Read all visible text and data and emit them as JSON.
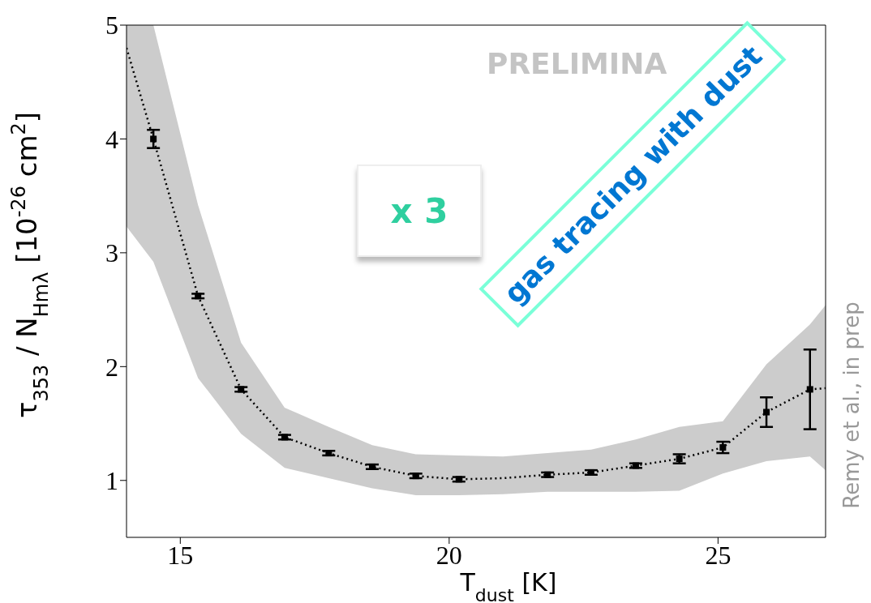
{
  "chart_data": {
    "type": "line",
    "xlabel": "T$_{dust}$ [K]",
    "ylabel": "τ$_{353}$ / N$_{Hmλ}$  [10$^{-26}$ cm$^{2}$]",
    "xlim": [
      14,
      27
    ],
    "xticks": [
      15,
      20,
      25
    ],
    "ylim": [
      0.5,
      5
    ],
    "yticks": [
      1,
      2,
      3,
      4,
      5
    ],
    "grid": false,
    "legend": false,
    "annotations": [
      "PRELIMINA",
      "x 3",
      "gas tracing with dust",
      "Remy et al., in prep"
    ],
    "series": [
      {
        "type": "line",
        "color": "#000000",
        "marker": "none",
        "line_style": "dotted",
        "x": [
          14,
          14.5,
          15.33,
          16.13,
          16.94,
          17.76,
          18.57,
          19.38,
          20.18,
          21.0,
          21.83,
          22.64,
          23.47,
          24.28,
          25.09,
          25.9,
          26.71,
          27
        ],
        "values": [
          4.8,
          4.0,
          2.62,
          1.8,
          1.38,
          1.24,
          1.12,
          1.04,
          1.01,
          1.02,
          1.05,
          1.07,
          1.13,
          1.19,
          1.29,
          1.6,
          1.8,
          1.81
        ],
        "lower": [
          3.23,
          2.92,
          1.9,
          1.41,
          1.11,
          1.02,
          0.93,
          0.87,
          0.87,
          0.88,
          0.9,
          0.9,
          0.9,
          0.91,
          1.06,
          1.17,
          1.21,
          1.09
        ],
        "upper": [
          5,
          5,
          3.42,
          2.21,
          1.64,
          1.47,
          1.31,
          1.23,
          1.22,
          1.21,
          1.24,
          1.27,
          1.36,
          1.47,
          1.52,
          2.02,
          2.37,
          2.54
        ]
      },
      {
        "type": "scatter",
        "color": "#000000",
        "marker": "square",
        "x": [
          14.5,
          15.33,
          16.13,
          16.94,
          17.76,
          18.57,
          19.38,
          20.18,
          21.0,
          21.83,
          22.64,
          23.47,
          24.28,
          25.09,
          25.9,
          26.71
        ],
        "values": [
          4.0,
          2.62,
          1.8,
          1.38,
          1.24,
          1.12,
          1.04,
          1.01,
          null,
          1.05,
          1.07,
          1.13,
          1.19,
          1.29,
          1.6,
          1.8
        ],
        "errors": [
          0.08,
          0.02,
          0.02,
          0.02,
          0.02,
          0.02,
          0.02,
          0.02,
          null,
          0.02,
          0.02,
          0.02,
          0.04,
          0.05,
          0.13,
          0.35
        ]
      }
    ]
  }
}
